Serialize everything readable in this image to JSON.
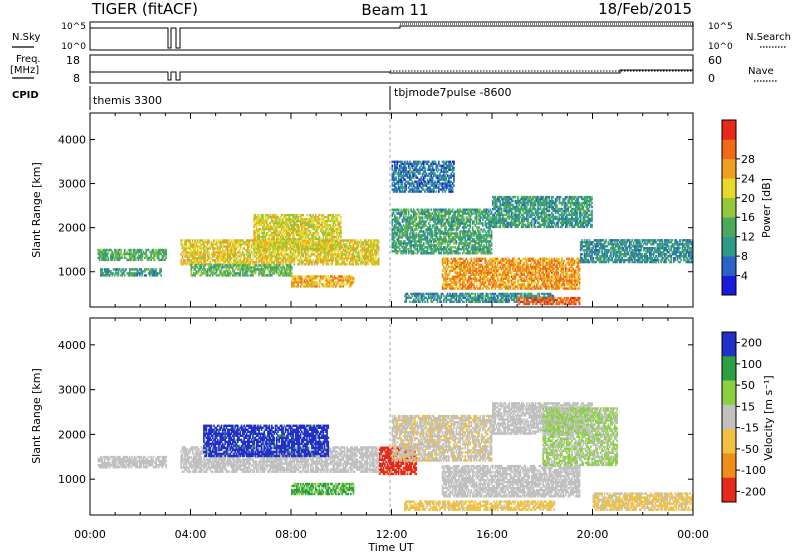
{
  "header": {
    "radar": "TIGER (fitACF)",
    "beam": "Beam 11",
    "date": "18/Feb/2015"
  },
  "top_panels": {
    "nsky": {
      "label": "N.Sky",
      "ticks": [
        "10^5",
        "10^0"
      ]
    },
    "nsearch": {
      "label": "N.Search",
      "ticks": [
        "10^5",
        "10^0"
      ]
    },
    "freq": {
      "label_line1": "Freq.",
      "label_line2": "[MHz]",
      "ticks": [
        "18",
        "8"
      ]
    },
    "nave": {
      "label": "Nave",
      "ticks": [
        "60",
        "0"
      ]
    },
    "cpid": {
      "label": "CPID",
      "modes": [
        {
          "name": "themis 3300",
          "start_hour": 0
        },
        {
          "name": "tbjmode7pulse -8600",
          "start_hour": 12
        }
      ]
    }
  },
  "chart_data": [
    {
      "type": "heatmap",
      "name": "power-panel",
      "ylabel": "Slant Range [km]",
      "xlabel": "",
      "xlim": [
        0,
        24
      ],
      "ylim": [
        200,
        4600
      ],
      "yticks": [
        "1000",
        "2000",
        "3000",
        "4000"
      ],
      "colorbar": {
        "label": "Power [dB]",
        "ticks": [
          "4",
          "8",
          "12",
          "16",
          "20",
          "24",
          "28"
        ],
        "colors": [
          "#1a1adc",
          "#2a62c8",
          "#2e9a8a",
          "#4ca85a",
          "#92c83a",
          "#e8d828",
          "#f0a020",
          "#f06a18",
          "#e82818"
        ],
        "range": [
          0,
          32
        ]
      },
      "bands": [
        {
          "t": [
            0.3,
            3.0
          ],
          "r": [
            1250,
            1500
          ],
          "v": 12
        },
        {
          "t": [
            0.4,
            2.8
          ],
          "r": [
            900,
            1050
          ],
          "v": 10
        },
        {
          "t": [
            3.6,
            11.5
          ],
          "r": [
            1150,
            1700
          ],
          "v": 20
        },
        {
          "t": [
            4.0,
            8.0
          ],
          "r": [
            900,
            1150
          ],
          "v": 13
        },
        {
          "t": [
            6.5,
            10.0
          ],
          "r": [
            1500,
            2300
          ],
          "v": 19
        },
        {
          "t": [
            8.0,
            10.5
          ],
          "r": [
            650,
            900
          ],
          "v": 22
        },
        {
          "t": [
            12.0,
            16.0
          ],
          "r": [
            1400,
            2400
          ],
          "v": 11
        },
        {
          "t": [
            12.5,
            18.5
          ],
          "r": [
            300,
            500
          ],
          "v": 9
        },
        {
          "t": [
            14.0,
            19.5
          ],
          "r": [
            600,
            1300
          ],
          "v": 24
        },
        {
          "t": [
            16.0,
            20.0
          ],
          "r": [
            2000,
            2700
          ],
          "v": 10
        },
        {
          "t": [
            17.0,
            19.5
          ],
          "r": [
            250,
            420
          ],
          "v": 28
        },
        {
          "t": [
            19.5,
            24.0
          ],
          "r": [
            1200,
            1700
          ],
          "v": 9
        },
        {
          "t": [
            12.0,
            14.5
          ],
          "r": [
            2800,
            3500
          ],
          "v": 7
        }
      ]
    },
    {
      "type": "heatmap",
      "name": "velocity-panel",
      "ylabel": "Slant Range [km]",
      "xlabel": "Time UT",
      "xlim": [
        0,
        24
      ],
      "ylim": [
        200,
        4600
      ],
      "xticks": [
        "00:00",
        "04:00",
        "08:00",
        "12:00",
        "16:00",
        "20:00",
        "00:00"
      ],
      "yticks": [
        "1000",
        "2000",
        "3000",
        "4000"
      ],
      "colorbar": {
        "label": "Velocity [m s⁻¹]",
        "ticks": [
          "200",
          "100",
          "50",
          "15",
          "-15",
          "-50",
          "-100",
          "-200"
        ],
        "colors": [
          "#2030c8",
          "#2aa040",
          "#8ad040",
          "#c0c0c0",
          "#f0c040",
          "#f08c18",
          "#e82818"
        ],
        "range": [
          -250,
          250
        ]
      },
      "bands": [
        {
          "t": [
            0.3,
            3.0
          ],
          "r": [
            1250,
            1500
          ],
          "v": 0
        },
        {
          "t": [
            3.6,
            11.5
          ],
          "r": [
            1150,
            1700
          ],
          "v": 0
        },
        {
          "t": [
            4.5,
            9.5
          ],
          "r": [
            1500,
            2200
          ],
          "v": 210
        },
        {
          "t": [
            8.0,
            10.5
          ],
          "r": [
            650,
            900
          ],
          "v": 120
        },
        {
          "t": [
            11.5,
            13.0
          ],
          "r": [
            1100,
            1700
          ],
          "v": -210
        },
        {
          "t": [
            12.0,
            16.0
          ],
          "r": [
            1400,
            2400
          ],
          "v": -20
        },
        {
          "t": [
            14.0,
            19.5
          ],
          "r": [
            600,
            1300
          ],
          "v": 0
        },
        {
          "t": [
            16.0,
            20.0
          ],
          "r": [
            2000,
            2700
          ],
          "v": 0
        },
        {
          "t": [
            18.0,
            21.0
          ],
          "r": [
            1300,
            2600
          ],
          "v": 40
        },
        {
          "t": [
            12.5,
            18.5
          ],
          "r": [
            300,
            500
          ],
          "v": -60
        },
        {
          "t": [
            20.0,
            24.0
          ],
          "r": [
            300,
            700
          ],
          "v": -50
        }
      ]
    }
  ]
}
